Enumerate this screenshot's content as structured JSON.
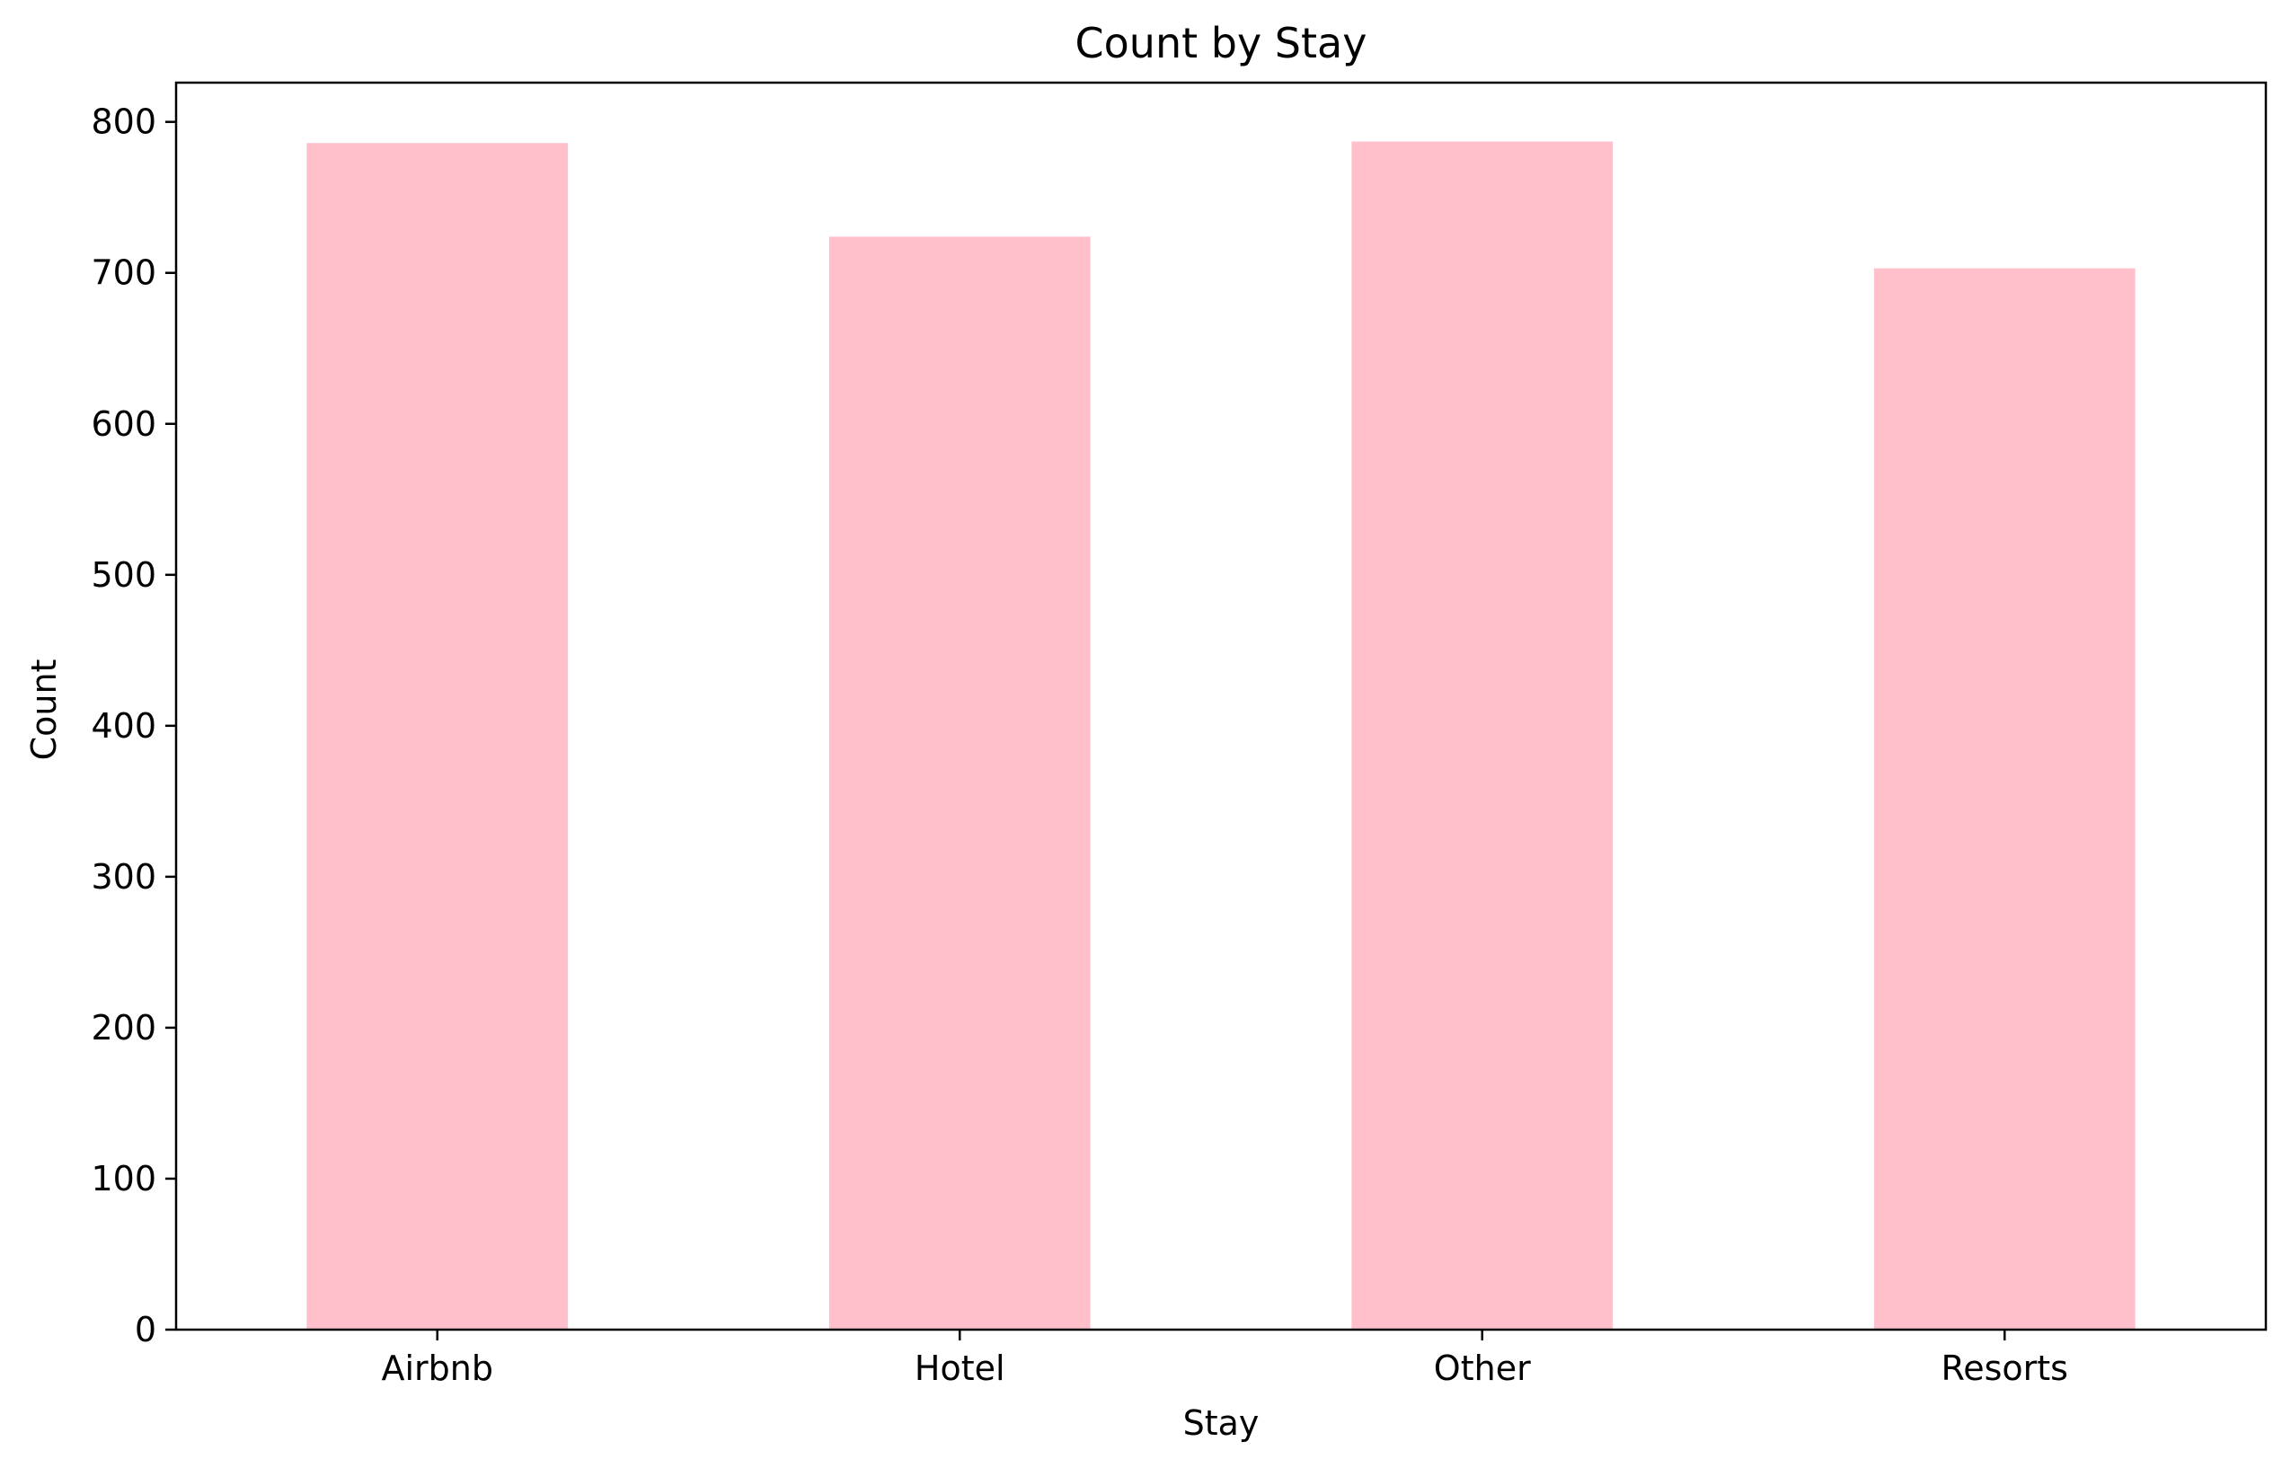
{
  "chart_data": {
    "type": "bar",
    "title": "Count by Stay",
    "xlabel": "Stay",
    "ylabel": "Count",
    "categories": [
      "Airbnb",
      "Hotel",
      "Other",
      "Resorts"
    ],
    "values": [
      786,
      724,
      787,
      703
    ],
    "ylim": [
      0,
      826
    ],
    "yticks": [
      0,
      100,
      200,
      300,
      400,
      500,
      600,
      700,
      800
    ],
    "bar_color": "#ffc0cb",
    "grid": false,
    "legend": "none"
  }
}
